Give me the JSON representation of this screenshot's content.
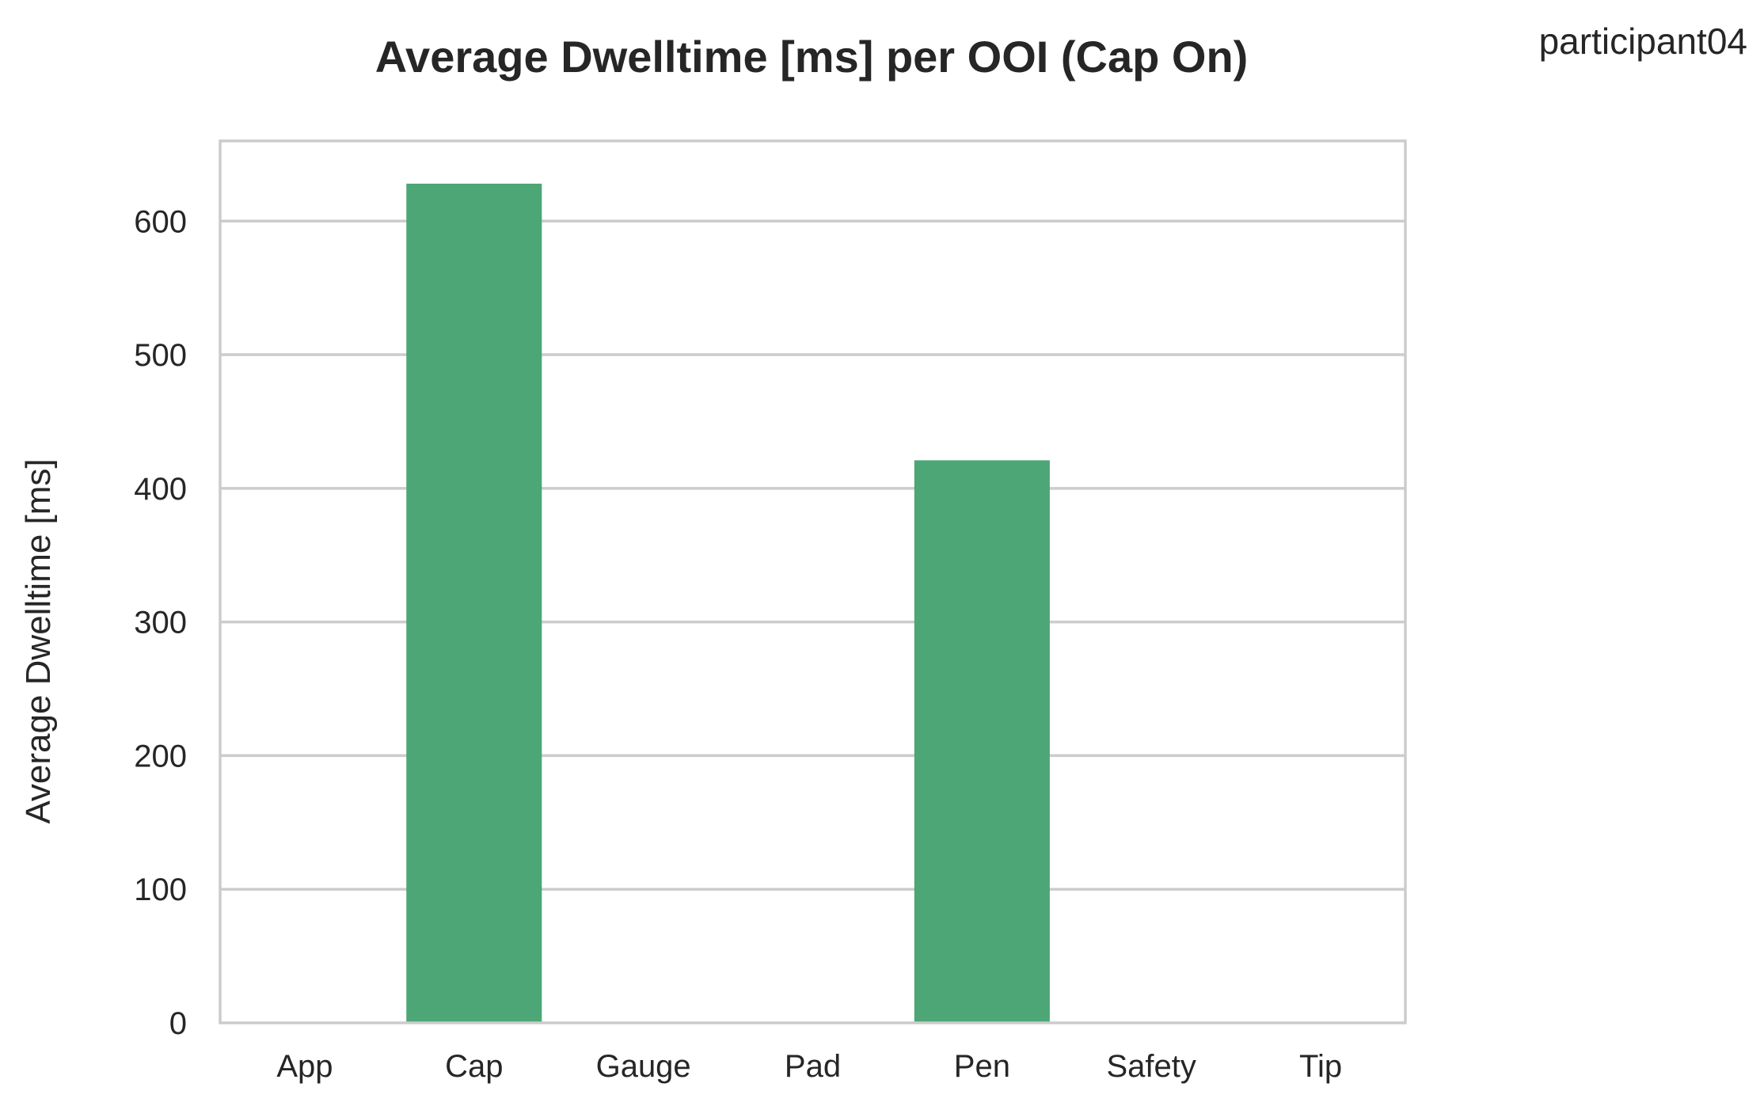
{
  "participant_label": "participant04",
  "chart_data": {
    "type": "bar",
    "title": "Average Dwelltime [ms] per OOI (Cap On)",
    "xlabel": "",
    "ylabel": "Average Dwelltime [ms]",
    "categories": [
      "App",
      "Cap",
      "Gauge",
      "Pad",
      "Pen",
      "Safety",
      "Tip"
    ],
    "values": [
      0,
      628,
      0,
      0,
      421,
      0,
      0
    ],
    "ylim": [
      0,
      660
    ],
    "yticks": [
      0,
      100,
      200,
      300,
      400,
      500,
      600
    ],
    "grid": true,
    "bar_color": "#4da675"
  }
}
